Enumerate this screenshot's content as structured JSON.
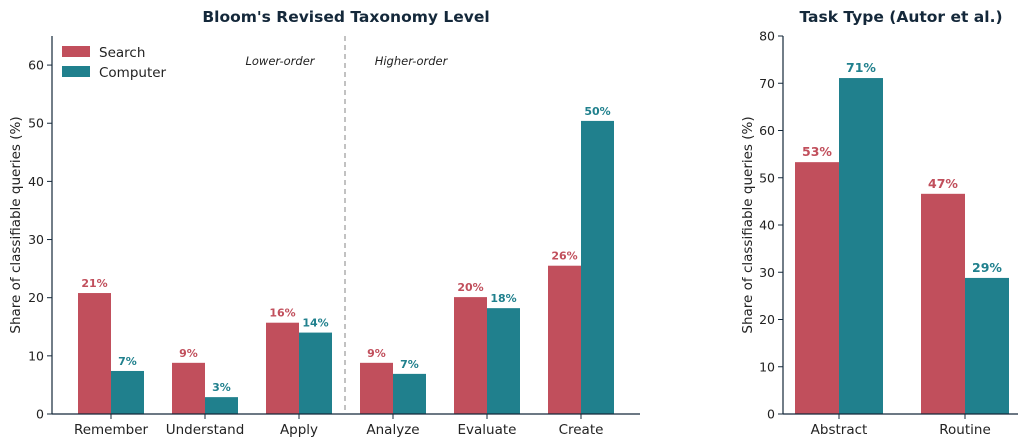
{
  "colors": {
    "search": "#c14f5c",
    "computer": "#20808d",
    "axis": "#14283a",
    "divider": "#999999"
  },
  "chart_data": [
    {
      "type": "bar",
      "title": "Bloom's Revised Taxonomy Level",
      "xlabel": "",
      "ylabel": "Share of classifiable queries (%)",
      "ylim": [
        0,
        65
      ],
      "yticks": [
        0,
        10,
        20,
        30,
        40,
        50,
        60
      ],
      "categories": [
        "Remember",
        "Understand",
        "Apply",
        "Analyze",
        "Evaluate",
        "Create"
      ],
      "series": [
        {
          "name": "Search",
          "values": [
            20.8,
            8.8,
            15.7,
            8.8,
            20.1,
            25.5
          ],
          "labels": [
            "21%",
            "9%",
            "16%",
            "9%",
            "20%",
            "26%"
          ]
        },
        {
          "name": "Computer",
          "values": [
            7.4,
            2.9,
            14.0,
            6.9,
            18.2,
            50.4
          ],
          "labels": [
            "7%",
            "3%",
            "14%",
            "7%",
            "18%",
            "50%"
          ]
        }
      ],
      "regions": {
        "left": "Lower-order",
        "right": "Higher-order"
      },
      "legend": "top-left",
      "grid": false
    },
    {
      "type": "bar",
      "title": "Task Type (Autor et al.)",
      "xlabel": "",
      "ylabel": "Share of classifiable queries (%)",
      "ylim": [
        0,
        80
      ],
      "yticks": [
        0,
        10,
        20,
        30,
        40,
        50,
        60,
        70,
        80
      ],
      "categories": [
        "Abstract",
        "Routine"
      ],
      "series": [
        {
          "name": "Search",
          "values": [
            53.3,
            46.6
          ],
          "labels": [
            "53%",
            "47%"
          ]
        },
        {
          "name": "Computer",
          "values": [
            71.1,
            28.8
          ],
          "labels": [
            "71%",
            "29%"
          ]
        }
      ],
      "grid": false
    }
  ]
}
